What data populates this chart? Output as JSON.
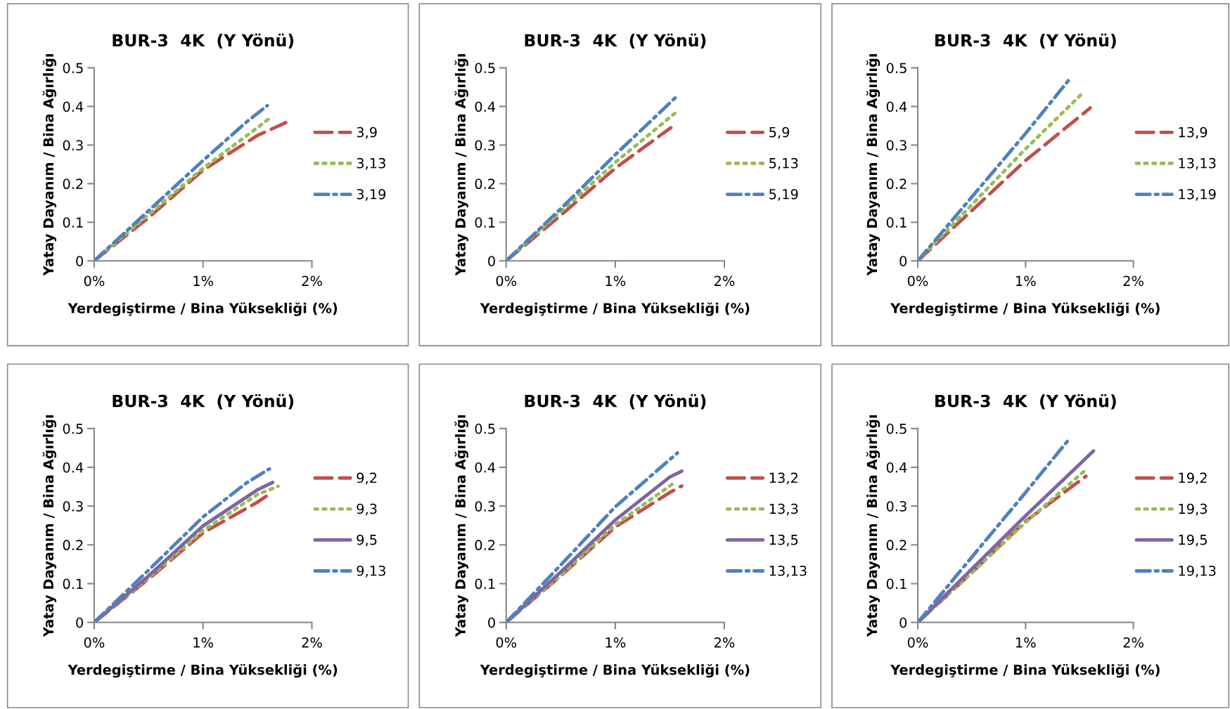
{
  "chart_data": [
    {
      "type": "line",
      "title": "BUR-3  4K  (Y Yönü)",
      "xlabel": "Yerdegiştirme / Bina Yüksekliği (%)",
      "ylabel": "Yatay Dayanım / Bina Ağırlığı",
      "xlim": [
        0,
        2
      ],
      "ylim": [
        0,
        0.5
      ],
      "xticks": [
        {
          "value": 0,
          "label": "0%"
        },
        {
          "value": 1,
          "label": "1%"
        },
        {
          "value": 2,
          "label": "2%"
        }
      ],
      "yticks": [
        0,
        0.1,
        0.2,
        0.3,
        0.4,
        0.5
      ],
      "legend": "right",
      "grid": false,
      "series": [
        {
          "name": "3,9",
          "color": "#c0504d",
          "line_style": "dashed",
          "x": [
            0,
            0.5,
            1,
            1.5,
            1.76
          ],
          "values": [
            0,
            0.112,
            0.235,
            0.325,
            0.358
          ]
        },
        {
          "name": "3,13",
          "color": "#9bbb59",
          "line_style": "dotted",
          "x": [
            0,
            0.5,
            1,
            1.5,
            1.6
          ],
          "values": [
            0,
            0.12,
            0.24,
            0.345,
            0.367
          ]
        },
        {
          "name": "3,19",
          "color": "#4f81bd",
          "line_style": "dashdot",
          "x": [
            0,
            0.5,
            1,
            1.4,
            1.59
          ],
          "values": [
            0,
            0.13,
            0.26,
            0.36,
            0.402
          ]
        }
      ]
    },
    {
      "type": "line",
      "title": "BUR-3  4K  (Y Yönü)",
      "xlabel": "Yerdegiştirme / Bina Yüksekliği (%)",
      "ylabel": "Yatay Dayanım / Bina Ağırlığı",
      "xlim": [
        0,
        2
      ],
      "ylim": [
        0,
        0.5
      ],
      "xticks": [
        {
          "value": 0,
          "label": "0%"
        },
        {
          "value": 1,
          "label": "1%"
        },
        {
          "value": 2,
          "label": "2%"
        }
      ],
      "yticks": [
        0,
        0.1,
        0.2,
        0.3,
        0.4,
        0.5
      ],
      "legend": "right",
      "grid": false,
      "series": [
        {
          "name": "5,9",
          "color": "#c0504d",
          "line_style": "dashed",
          "x": [
            0,
            0.5,
            1,
            1.51
          ],
          "values": [
            0,
            0.118,
            0.24,
            0.345
          ]
        },
        {
          "name": "5,13",
          "color": "#9bbb59",
          "line_style": "dotted",
          "x": [
            0,
            0.5,
            1,
            1.55
          ],
          "values": [
            0,
            0.128,
            0.255,
            0.383
          ]
        },
        {
          "name": "5,19",
          "color": "#4f81bd",
          "line_style": "dashdot",
          "x": [
            0,
            0.5,
            1,
            1.56
          ],
          "values": [
            0,
            0.135,
            0.275,
            0.425
          ]
        }
      ]
    },
    {
      "type": "line",
      "title": "BUR-3  4K  (Y Yönü)",
      "xlabel": "Yerdegiştirme / Bina Yüksekliği (%)",
      "ylabel": "Yatay Dayanım / Bina Ağırlığı",
      "xlim": [
        0,
        2
      ],
      "ylim": [
        0,
        0.5
      ],
      "xticks": [
        {
          "value": 0,
          "label": "0%"
        },
        {
          "value": 1,
          "label": "1%"
        },
        {
          "value": 2,
          "label": "2%"
        }
      ],
      "yticks": [
        0,
        0.1,
        0.2,
        0.3,
        0.4,
        0.5
      ],
      "legend": "right",
      "grid": false,
      "series": [
        {
          "name": "13,9",
          "color": "#c0504d",
          "line_style": "dashed",
          "x": [
            0,
            0.5,
            1,
            1.6
          ],
          "values": [
            0,
            0.13,
            0.26,
            0.396
          ]
        },
        {
          "name": "13,13",
          "color": "#9bbb59",
          "line_style": "dotted",
          "x": [
            0,
            0.5,
            1,
            1.52
          ],
          "values": [
            0,
            0.145,
            0.29,
            0.432
          ]
        },
        {
          "name": "13,19",
          "color": "#4f81bd",
          "line_style": "dashdot",
          "x": [
            0,
            0.5,
            1,
            1.4
          ],
          "values": [
            0,
            0.165,
            0.33,
            0.468
          ]
        }
      ]
    },
    {
      "type": "line",
      "title": "BUR-3  4K  (Y Yönü)",
      "xlabel": "Yerdegiştirme / Bina Yüksekliği (%)",
      "ylabel": "Yatay Dayanım / Bina Ağırlığı",
      "xlim": [
        0,
        2
      ],
      "ylim": [
        0,
        0.5
      ],
      "xticks": [
        {
          "value": 0,
          "label": "0%"
        },
        {
          "value": 1,
          "label": "1%"
        },
        {
          "value": 2,
          "label": "2%"
        }
      ],
      "yticks": [
        0,
        0.1,
        0.2,
        0.3,
        0.4,
        0.5
      ],
      "legend": "right",
      "grid": false,
      "series": [
        {
          "name": "9,2",
          "color": "#c0504d",
          "line_style": "dashed",
          "x": [
            0,
            0.5,
            1,
            1.5,
            1.61
          ],
          "values": [
            0,
            0.112,
            0.231,
            0.31,
            0.331
          ]
        },
        {
          "name": "9,3",
          "color": "#9bbb59",
          "line_style": "dotted",
          "x": [
            0,
            0.5,
            1,
            1.5,
            1.69
          ],
          "values": [
            0,
            0.115,
            0.237,
            0.33,
            0.351
          ]
        },
        {
          "name": "9,5",
          "color": "#8064a2",
          "line_style": "solid",
          "x": [
            0,
            0.5,
            1,
            1.5,
            1.64
          ],
          "values": [
            0,
            0.12,
            0.249,
            0.342,
            0.361
          ]
        },
        {
          "name": "9,13",
          "color": "#4f81bd",
          "line_style": "dashdot",
          "x": [
            0,
            0.5,
            1,
            1.4,
            1.61
          ],
          "values": [
            0,
            0.135,
            0.272,
            0.36,
            0.396
          ]
        }
      ]
    },
    {
      "type": "line",
      "title": "BUR-3  4K  (Y Yönü)",
      "xlabel": "Yerdegiştirme / Bina Yüksekliği (%)",
      "ylabel": "Yatay Dayanım / Bina Ağırlığı",
      "xlim": [
        0,
        2
      ],
      "ylim": [
        0,
        0.5
      ],
      "xticks": [
        {
          "value": 0,
          "label": "0%"
        },
        {
          "value": 1,
          "label": "1%"
        },
        {
          "value": 2,
          "label": "2%"
        }
      ],
      "yticks": [
        0,
        0.1,
        0.2,
        0.3,
        0.4,
        0.5
      ],
      "legend": "right",
      "grid": false,
      "series": [
        {
          "name": "13,2",
          "color": "#c0504d",
          "line_style": "dashed",
          "x": [
            0,
            0.5,
            1,
            1.5,
            1.61
          ],
          "values": [
            0,
            0.12,
            0.246,
            0.335,
            0.352
          ]
        },
        {
          "name": "13,3",
          "color": "#9bbb59",
          "line_style": "dotted",
          "x": [
            0,
            0.5,
            1,
            1.54
          ],
          "values": [
            0,
            0.122,
            0.252,
            0.36
          ]
        },
        {
          "name": "13,5",
          "color": "#8064a2",
          "line_style": "solid",
          "x": [
            0,
            0.5,
            1,
            1.5,
            1.61
          ],
          "values": [
            0,
            0.13,
            0.264,
            0.375,
            0.39
          ]
        },
        {
          "name": "13,13",
          "color": "#4f81bd",
          "line_style": "dashdot",
          "x": [
            0,
            0.5,
            1,
            1.57
          ],
          "values": [
            0,
            0.148,
            0.298,
            0.437
          ]
        }
      ]
    },
    {
      "type": "line",
      "title": "BUR-3  4K  (Y Yönü)",
      "xlabel": "Yerdegiştirme / Bina Yüksekliği (%)",
      "ylabel": "Yatay Dayanım / Bina Ağırlığı",
      "xlim": [
        0,
        2
      ],
      "ylim": [
        0,
        0.5
      ],
      "xticks": [
        {
          "value": 0,
          "label": "0%"
        },
        {
          "value": 1,
          "label": "1%"
        },
        {
          "value": 2,
          "label": "2%"
        }
      ],
      "yticks": [
        0,
        0.1,
        0.2,
        0.3,
        0.4,
        0.5
      ],
      "legend": "right",
      "grid": false,
      "series": [
        {
          "name": "19,2",
          "color": "#c0504d",
          "line_style": "dashed",
          "x": [
            0,
            0.5,
            1,
            1.56
          ],
          "values": [
            0,
            0.128,
            0.261,
            0.377
          ]
        },
        {
          "name": "19,3",
          "color": "#9bbb59",
          "line_style": "dotted",
          "x": [
            0,
            0.5,
            1,
            1.56
          ],
          "values": [
            0,
            0.128,
            0.258,
            0.394
          ]
        },
        {
          "name": "19,5",
          "color": "#8064a2",
          "line_style": "solid",
          "x": [
            0,
            1,
            1.63
          ],
          "values": [
            0,
            0.275,
            0.442
          ]
        },
        {
          "name": "19,13",
          "color": "#4f81bd",
          "line_style": "dashdot",
          "x": [
            0,
            0.5,
            1,
            1.39
          ],
          "values": [
            0,
            0.168,
            0.335,
            0.468
          ]
        }
      ]
    }
  ]
}
